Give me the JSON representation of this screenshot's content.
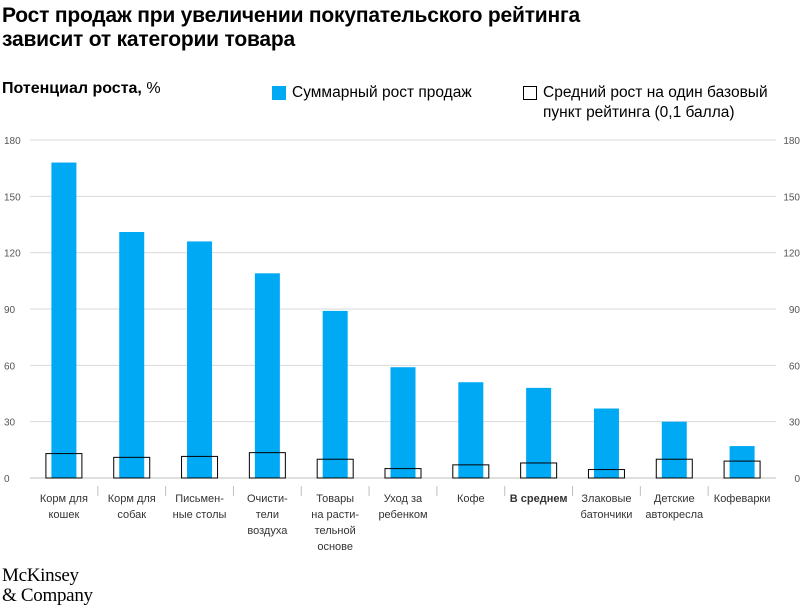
{
  "title": "Рост продаж при увеличении покупательского рейтинга зависит от категории товара",
  "y_axis": {
    "label_bold": "Потенциал роста,",
    "label_unit": "%"
  },
  "legend": {
    "total": "Суммарный рост продаж",
    "average": "Средний рост на один базовый пункт рейтинга (0,1 балла)"
  },
  "colors": {
    "bar": "#00a9f4",
    "outline": "#000000",
    "grid": "#d9d9d9"
  },
  "chart_data": {
    "type": "bar",
    "categories": [
      [
        "Корм для",
        "кошек"
      ],
      [
        "Корм для",
        "собак"
      ],
      [
        "Письмен-",
        "ные столы"
      ],
      [
        "Очисти-",
        "тели",
        "воздуха"
      ],
      [
        "Товары",
        "на расти-",
        "тельной",
        "основе"
      ],
      [
        "Уход за",
        "ребенком"
      ],
      [
        "Кофе"
      ],
      [
        "В среднем"
      ],
      [
        "Злаковые",
        "батончики"
      ],
      [
        "Детские",
        "автокресла"
      ],
      [
        "Кофеварки"
      ]
    ],
    "bold_category_index": 7,
    "series": [
      {
        "name": "Суммарный рост продаж",
        "values": [
          168,
          131,
          126,
          109,
          89,
          59,
          51,
          48,
          37,
          30,
          17
        ]
      },
      {
        "name": "Средний рост на один базовый пункт рейтинга (0,1 балла)",
        "values": [
          13,
          11,
          11.5,
          13.5,
          10,
          5,
          7,
          8,
          4.5,
          10,
          9
        ]
      }
    ],
    "ylim": [
      0,
      180
    ],
    "yticks": [
      "0",
      "30",
      "60",
      "90",
      "120",
      "150",
      "180"
    ],
    "grid": true
  },
  "logo": {
    "line1": "McKinsey",
    "line2": "& Company"
  }
}
